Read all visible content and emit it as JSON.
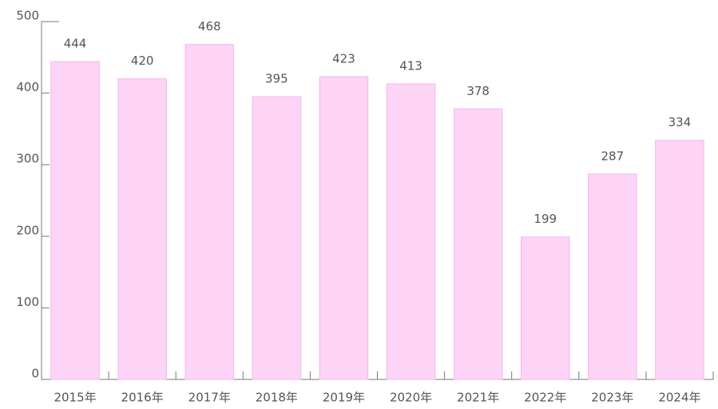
{
  "chart_data": {
    "type": "bar",
    "categories": [
      "2015年",
      "2016年",
      "2017年",
      "2018年",
      "2019年",
      "2020年",
      "2021年",
      "2022年",
      "2023年",
      "2024年"
    ],
    "values": [
      444,
      420,
      468,
      395,
      423,
      413,
      378,
      199,
      287,
      334
    ],
    "color": "#fdd3f6",
    "ylim": [
      0,
      500
    ],
    "yticks": [
      0,
      100,
      200,
      300,
      400,
      500
    ],
    "grid": false
  }
}
